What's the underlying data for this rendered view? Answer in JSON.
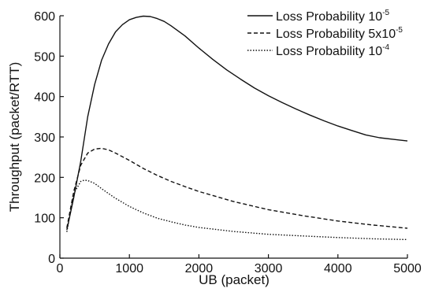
{
  "chart_data": {
    "type": "line",
    "title": "",
    "xlabel": "UB (packet)",
    "ylabel": "Throughput (packet/RTT)",
    "xlim": [
      0,
      5000
    ],
    "ylim": [
      0,
      600
    ],
    "xticks": [
      "0",
      "1000",
      "2000",
      "3000",
      "4000",
      "5000"
    ],
    "yticks": [
      "0",
      "100",
      "200",
      "300",
      "400",
      "500",
      "600"
    ],
    "grid": false,
    "legend_position": "top-right",
    "series": [
      {
        "name": "Loss Probability 10",
        "name_sup": "-5",
        "line_style": "solid",
        "x": [
          100,
          200,
          300,
          400,
          500,
          600,
          700,
          800,
          900,
          1000,
          1100,
          1200,
          1300,
          1400,
          1500,
          1600,
          1800,
          2000,
          2200,
          2400,
          2600,
          2800,
          3000,
          3200,
          3400,
          3600,
          3800,
          4000,
          4200,
          4400,
          4600,
          4800,
          5000
        ],
        "y": [
          70,
          150,
          240,
          350,
          430,
          490,
          530,
          560,
          578,
          590,
          596,
          599,
          598,
          593,
          586,
          575,
          550,
          520,
          492,
          466,
          443,
          421,
          402,
          385,
          369,
          354,
          340,
          327,
          316,
          305,
          298,
          294,
          290
        ]
      },
      {
        "name": "Loss Probability 5x10",
        "name_sup": "-5",
        "line_style": "dashed",
        "x": [
          100,
          200,
          300,
          400,
          500,
          600,
          700,
          800,
          1000,
          1200,
          1400,
          1600,
          1800,
          2000,
          2500,
          3000,
          3500,
          4000,
          4500,
          5000
        ],
        "y": [
          75,
          165,
          230,
          260,
          270,
          272,
          268,
          260,
          242,
          222,
          205,
          190,
          177,
          165,
          140,
          120,
          105,
          92,
          82,
          74
        ]
      },
      {
        "name": "Loss Probability 10",
        "name_sup": "-4",
        "line_style": "dotted",
        "x": [
          100,
          200,
          300,
          350,
          400,
          500,
          600,
          700,
          800,
          1000,
          1200,
          1400,
          1600,
          1800,
          2000,
          2500,
          3000,
          3500,
          4000,
          4500,
          5000
        ],
        "y": [
          65,
          160,
          190,
          193,
          192,
          185,
          172,
          160,
          148,
          128,
          112,
          99,
          90,
          82,
          76,
          66,
          59,
          55,
          51,
          48,
          46
        ]
      }
    ]
  }
}
